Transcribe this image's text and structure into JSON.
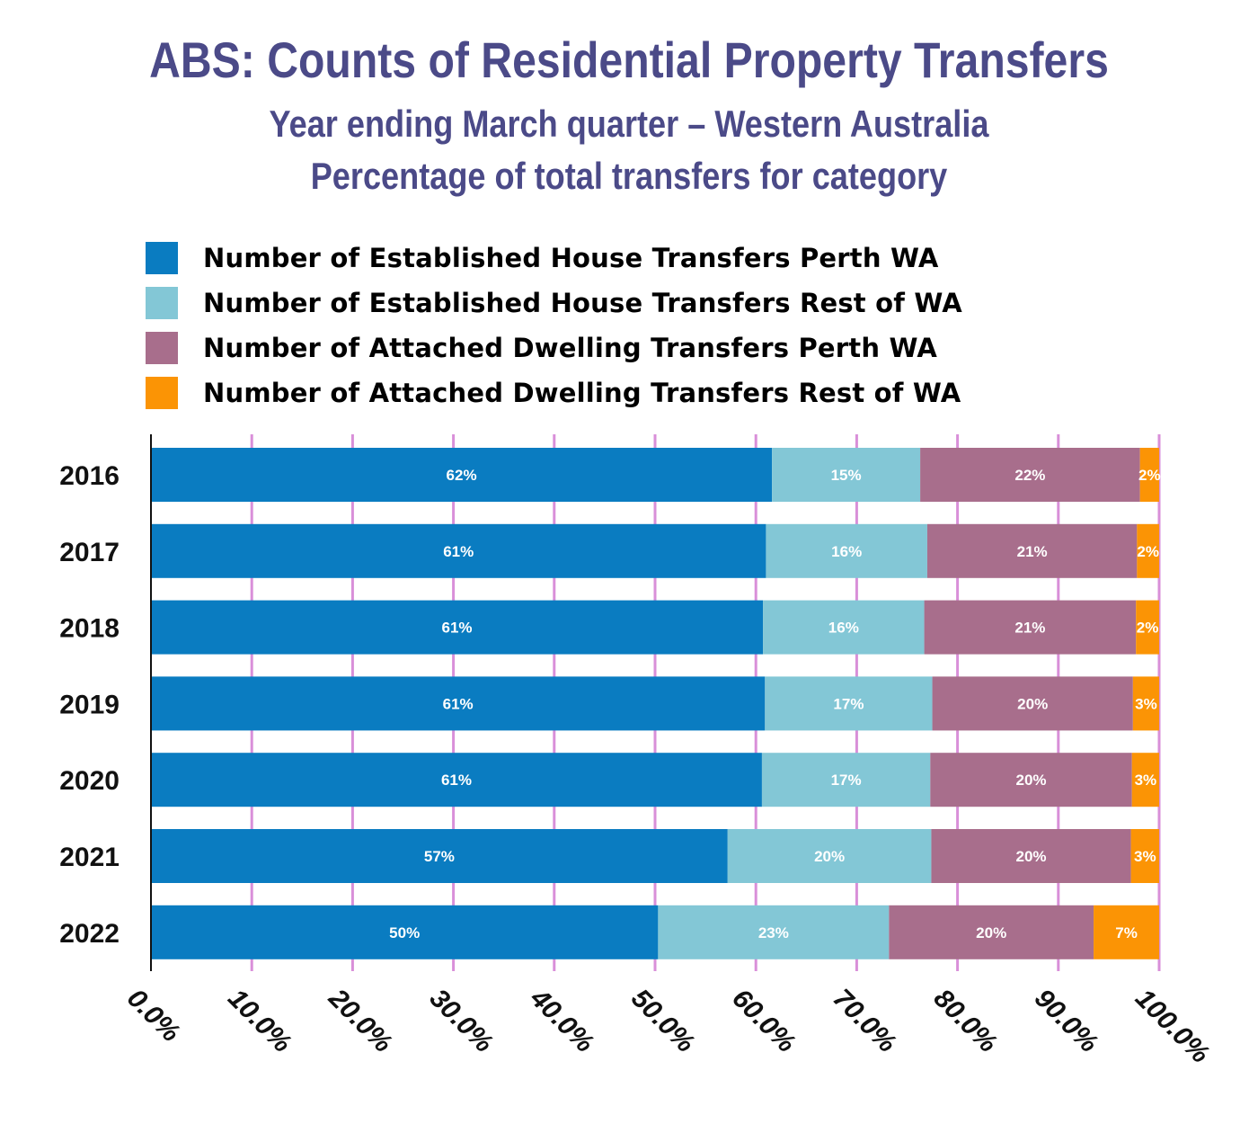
{
  "chart_data": {
    "type": "bar",
    "orientation": "horizontal",
    "stacked": true,
    "title": "ABS: Counts of Residential Property Transfers",
    "subtitle": "Year ending March quarter – Western Australia",
    "subtitle2": "Percentage of total transfers for category",
    "categories": [
      "2016",
      "2017",
      "2018",
      "2019",
      "2020",
      "2021",
      "2022"
    ],
    "series": [
      {
        "name": "Number of Established House Transfers Perth WA",
        "color": "#0a7cc1",
        "values": [
          61.6,
          61.0,
          60.7,
          60.9,
          60.6,
          57.2,
          50.3
        ],
        "labels": [
          "62%",
          "61%",
          "61%",
          "61%",
          "61%",
          "57%",
          "50%"
        ]
      },
      {
        "name": "Number of Established House Transfers Rest of WA",
        "color": "#83c7d6",
        "values": [
          14.7,
          16.0,
          16.0,
          16.6,
          16.7,
          20.2,
          22.9
        ],
        "labels": [
          "15%",
          "16%",
          "16%",
          "17%",
          "17%",
          "20%",
          "23%"
        ]
      },
      {
        "name": "Number of Attached Dwelling Transfers Perth WA",
        "color": "#a86e8c",
        "values": [
          21.8,
          20.8,
          21.0,
          19.9,
          20.0,
          19.8,
          20.3
        ],
        "labels": [
          "22%",
          "21%",
          "21%",
          "20%",
          "20%",
          "20%",
          "20%"
        ]
      },
      {
        "name": "Number of Attached Dwelling Transfers Rest of WA",
        "color": "#fb9405",
        "values": [
          1.9,
          2.2,
          2.3,
          2.6,
          2.7,
          2.8,
          6.5
        ],
        "labels": [
          "2%",
          "2%",
          "2%",
          "3%",
          "3%",
          "3%",
          "7%"
        ]
      }
    ],
    "xlim": [
      0,
      100
    ],
    "x_ticks": [
      0,
      10,
      20,
      30,
      40,
      50,
      60,
      70,
      80,
      90,
      100
    ],
    "x_tick_labels": [
      "0.0%",
      "10.0%",
      "20.0%",
      "30.0%",
      "40.0%",
      "50.0%",
      "60.0%",
      "70.0%",
      "80.0%",
      "90.0%",
      "100.0%"
    ],
    "grid": true,
    "grid_color": "#d98fd9",
    "legend_position": "top-left"
  }
}
